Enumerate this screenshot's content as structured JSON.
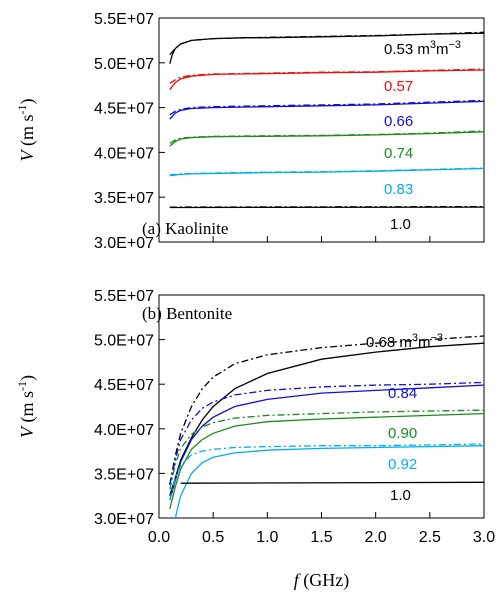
{
  "chart_data": [
    {
      "type": "line",
      "panel_label": "(a) Kaolinite",
      "xlabel": "f (GHz)",
      "ylabel": "V (m s-1)",
      "xlim": [
        0.0,
        3.0
      ],
      "ylim": [
        30000000,
        55000000
      ],
      "x_ticks": [],
      "y_ticks": [
        "3.0E+07",
        "3.5E+07",
        "4.0E+07",
        "4.5E+07",
        "5.0E+07",
        "5.5E+07"
      ],
      "grid": false,
      "series": [
        {
          "name": "0.53 m3m-3",
          "label": "0.53",
          "unit": "m3m−3",
          "color": "#000000",
          "solid": [
            [
              0.1,
              49900000
            ],
            [
              0.12,
              50800000
            ],
            [
              0.15,
              51600000
            ],
            [
              0.2,
              52100000
            ],
            [
              0.3,
              52500000
            ],
            [
              0.5,
              52700000
            ],
            [
              0.8,
              52800000
            ],
            [
              1.0,
              52800000
            ],
            [
              1.5,
              52900000
            ],
            [
              2.0,
              53000000
            ],
            [
              2.5,
              53200000
            ],
            [
              3.0,
              53300000
            ]
          ],
          "dashed": [
            [
              0.1,
              50900000
            ],
            [
              0.15,
              51600000
            ],
            [
              0.2,
              52100000
            ],
            [
              0.3,
              52500000
            ],
            [
              0.5,
              52700000
            ],
            [
              1.0,
              52850000
            ],
            [
              1.5,
              52950000
            ],
            [
              2.0,
              53050000
            ],
            [
              2.5,
              53200000
            ],
            [
              3.0,
              53400000
            ]
          ]
        },
        {
          "name": "0.57",
          "label": "0.57",
          "unit": "",
          "color": "#e8100c",
          "solid": [
            [
              0.1,
              47000000
            ],
            [
              0.15,
              47800000
            ],
            [
              0.2,
              48200000
            ],
            [
              0.3,
              48500000
            ],
            [
              0.5,
              48700000
            ],
            [
              1.0,
              48800000
            ],
            [
              1.5,
              48900000
            ],
            [
              2.0,
              48950000
            ],
            [
              2.5,
              49100000
            ],
            [
              3.0,
              49200000
            ]
          ],
          "dashed": [
            [
              0.1,
              47700000
            ],
            [
              0.15,
              48100000
            ],
            [
              0.2,
              48400000
            ],
            [
              0.3,
              48600000
            ],
            [
              0.5,
              48750000
            ],
            [
              1.0,
              48850000
            ],
            [
              1.5,
              48950000
            ],
            [
              2.0,
              49000000
            ],
            [
              2.5,
              49150000
            ],
            [
              3.0,
              49300000
            ]
          ]
        },
        {
          "name": "0.66",
          "label": "0.66",
          "unit": "",
          "color": "#1010d0",
          "solid": [
            [
              0.1,
              43700000
            ],
            [
              0.15,
              44400000
            ],
            [
              0.2,
              44700000
            ],
            [
              0.3,
              44900000
            ],
            [
              0.5,
              45000000
            ],
            [
              1.0,
              45100000
            ],
            [
              1.5,
              45200000
            ],
            [
              2.0,
              45300000
            ],
            [
              2.5,
              45500000
            ],
            [
              3.0,
              45700000
            ]
          ],
          "dashed": [
            [
              0.1,
              44200000
            ],
            [
              0.15,
              44600000
            ],
            [
              0.2,
              44800000
            ],
            [
              0.3,
              45000000
            ],
            [
              0.5,
              45100000
            ],
            [
              1.0,
              45200000
            ],
            [
              1.5,
              45300000
            ],
            [
              2.0,
              45400000
            ],
            [
              2.5,
              45600000
            ],
            [
              3.0,
              45800000
            ]
          ]
        },
        {
          "name": "0.74",
          "label": "0.74",
          "unit": "",
          "color": "#1c8a1c",
          "solid": [
            [
              0.1,
              40700000
            ],
            [
              0.15,
              41200000
            ],
            [
              0.2,
              41500000
            ],
            [
              0.3,
              41650000
            ],
            [
              0.5,
              41750000
            ],
            [
              1.0,
              41800000
            ],
            [
              1.5,
              41850000
            ],
            [
              2.0,
              41950000
            ],
            [
              2.5,
              42100000
            ],
            [
              3.0,
              42300000
            ]
          ],
          "dashed": [
            [
              0.1,
              41000000
            ],
            [
              0.15,
              41400000
            ],
            [
              0.2,
              41600000
            ],
            [
              0.3,
              41700000
            ],
            [
              0.5,
              41800000
            ],
            [
              1.0,
              41850000
            ],
            [
              1.5,
              41900000
            ],
            [
              2.0,
              42000000
            ],
            [
              2.5,
              42150000
            ],
            [
              3.0,
              42400000
            ]
          ]
        },
        {
          "name": "0.83",
          "label": "0.83",
          "unit": "",
          "color": "#00aeea",
          "solid": [
            [
              0.1,
              37400000
            ],
            [
              0.2,
              37550000
            ],
            [
              0.3,
              37600000
            ],
            [
              0.5,
              37650000
            ],
            [
              1.0,
              37750000
            ],
            [
              1.5,
              37800000
            ],
            [
              2.0,
              37900000
            ],
            [
              2.5,
              38050000
            ],
            [
              3.0,
              38200000
            ]
          ],
          "dashed": [
            [
              0.1,
              37500000
            ],
            [
              0.2,
              37600000
            ],
            [
              0.3,
              37650000
            ],
            [
              0.5,
              37700000
            ],
            [
              1.0,
              37800000
            ],
            [
              1.5,
              37850000
            ],
            [
              2.0,
              37950000
            ],
            [
              2.5,
              38100000
            ],
            [
              3.0,
              38250000
            ]
          ]
        },
        {
          "name": "1.0",
          "label": "1.0",
          "unit": "",
          "color": "#000000",
          "solid": [
            [
              0.1,
              33850000
            ],
            [
              3.0,
              33900000
            ]
          ],
          "dashed": [
            [
              0.1,
              33900000
            ],
            [
              3.0,
              33950000
            ]
          ]
        }
      ]
    },
    {
      "type": "line",
      "panel_label": "(b) Bentonite",
      "xlabel": "f (GHz)",
      "ylabel": "V (m s-1)",
      "xlim": [
        0.0,
        3.0
      ],
      "ylim": [
        30000000,
        55000000
      ],
      "x_ticks": [
        "0.0",
        "0.5",
        "1.0",
        "1.5",
        "2.0",
        "2.5",
        "3.0"
      ],
      "y_ticks": [
        "3.0E+07",
        "3.5E+07",
        "4.0E+07",
        "4.5E+07",
        "5.0E+07",
        "5.5E+07"
      ],
      "grid": false,
      "series": [
        {
          "name": "0.68 m3m-3",
          "label": "0.68",
          "unit": "m3m−3",
          "color": "#000000",
          "solid": [
            [
              0.1,
              32500000
            ],
            [
              0.15,
              34500000
            ],
            [
              0.2,
              36500000
            ],
            [
              0.3,
              39000000
            ],
            [
              0.4,
              41000000
            ],
            [
              0.5,
              42500000
            ],
            [
              0.7,
              44500000
            ],
            [
              1.0,
              46200000
            ],
            [
              1.5,
              47800000
            ],
            [
              2.0,
              48600000
            ],
            [
              2.5,
              49200000
            ],
            [
              3.0,
              49600000
            ]
          ],
          "dashed": [
            [
              0.1,
              33800000
            ],
            [
              0.15,
              37000000
            ],
            [
              0.2,
              39500000
            ],
            [
              0.3,
              42500000
            ],
            [
              0.4,
              44500000
            ],
            [
              0.5,
              45800000
            ],
            [
              0.7,
              47300000
            ],
            [
              1.0,
              48300000
            ],
            [
              1.5,
              49100000
            ],
            [
              2.0,
              49600000
            ],
            [
              2.5,
              50000000
            ],
            [
              3.0,
              50400000
            ]
          ]
        },
        {
          "name": "0.84",
          "label": "0.84",
          "unit": "",
          "color": "#1010d0",
          "solid": [
            [
              0.1,
              32000000
            ],
            [
              0.15,
              34200000
            ],
            [
              0.2,
              36300000
            ],
            [
              0.3,
              38800000
            ],
            [
              0.4,
              40300000
            ],
            [
              0.5,
              41300000
            ],
            [
              0.7,
              42500000
            ],
            [
              1.0,
              43300000
            ],
            [
              1.5,
              44000000
            ],
            [
              2.0,
              44300000
            ],
            [
              2.5,
              44600000
            ],
            [
              3.0,
              44900000
            ]
          ],
          "dashed": [
            [
              0.1,
              33700000
            ],
            [
              0.15,
              36500000
            ],
            [
              0.2,
              38800000
            ],
            [
              0.3,
              41000000
            ],
            [
              0.4,
              42300000
            ],
            [
              0.5,
              43000000
            ],
            [
              0.7,
              43800000
            ],
            [
              1.0,
              44300000
            ],
            [
              1.5,
              44700000
            ],
            [
              2.0,
              44900000
            ],
            [
              2.5,
              45000000
            ],
            [
              3.0,
              45200000
            ]
          ]
        },
        {
          "name": "0.90",
          "label": "0.90",
          "unit": "",
          "color": "#1c8a1c",
          "solid": [
            [
              0.1,
              31000000
            ],
            [
              0.15,
              33500000
            ],
            [
              0.2,
              35500000
            ],
            [
              0.3,
              37700000
            ],
            [
              0.4,
              38800000
            ],
            [
              0.5,
              39500000
            ],
            [
              0.7,
              40300000
            ],
            [
              1.0,
              40800000
            ],
            [
              1.5,
              41100000
            ],
            [
              2.0,
              41300000
            ],
            [
              2.5,
              41500000
            ],
            [
              3.0,
              41700000
            ]
          ],
          "dashed": [
            [
              0.1,
              33200000
            ],
            [
              0.15,
              36000000
            ],
            [
              0.2,
              37800000
            ],
            [
              0.3,
              39400000
            ],
            [
              0.4,
              40200000
            ],
            [
              0.5,
              40700000
            ],
            [
              0.7,
              41200000
            ],
            [
              1.0,
              41500000
            ],
            [
              1.5,
              41700000
            ],
            [
              2.0,
              41900000
            ],
            [
              2.5,
              42000000
            ],
            [
              3.0,
              42100000
            ]
          ]
        },
        {
          "name": "0.92",
          "label": "0.92",
          "unit": "",
          "color": "#00aeea",
          "solid": [
            [
              0.15,
              30000000
            ],
            [
              0.2,
              32500000
            ],
            [
              0.3,
              35000000
            ],
            [
              0.4,
              36200000
            ],
            [
              0.5,
              36800000
            ],
            [
              0.7,
              37300000
            ],
            [
              1.0,
              37600000
            ],
            [
              1.5,
              37800000
            ],
            [
              2.0,
              37900000
            ],
            [
              2.5,
              38000000
            ],
            [
              3.0,
              38100000
            ]
          ],
          "dashed": [
            [
              0.1,
              32000000
            ],
            [
              0.15,
              34500000
            ],
            [
              0.2,
              35900000
            ],
            [
              0.3,
              37100000
            ],
            [
              0.4,
              37500000
            ],
            [
              0.5,
              37700000
            ],
            [
              0.7,
              37900000
            ],
            [
              1.0,
              38000000
            ],
            [
              1.5,
              38100000
            ],
            [
              2.0,
              38100000
            ],
            [
              2.5,
              38200000
            ],
            [
              3.0,
              38300000
            ]
          ]
        },
        {
          "name": "1.0",
          "label": "1.0",
          "unit": "",
          "color": "#000000",
          "solid": [
            [
              0.2,
              33900000
            ],
            [
              3.0,
              34000000
            ]
          ],
          "dashed": []
        }
      ]
    }
  ]
}
